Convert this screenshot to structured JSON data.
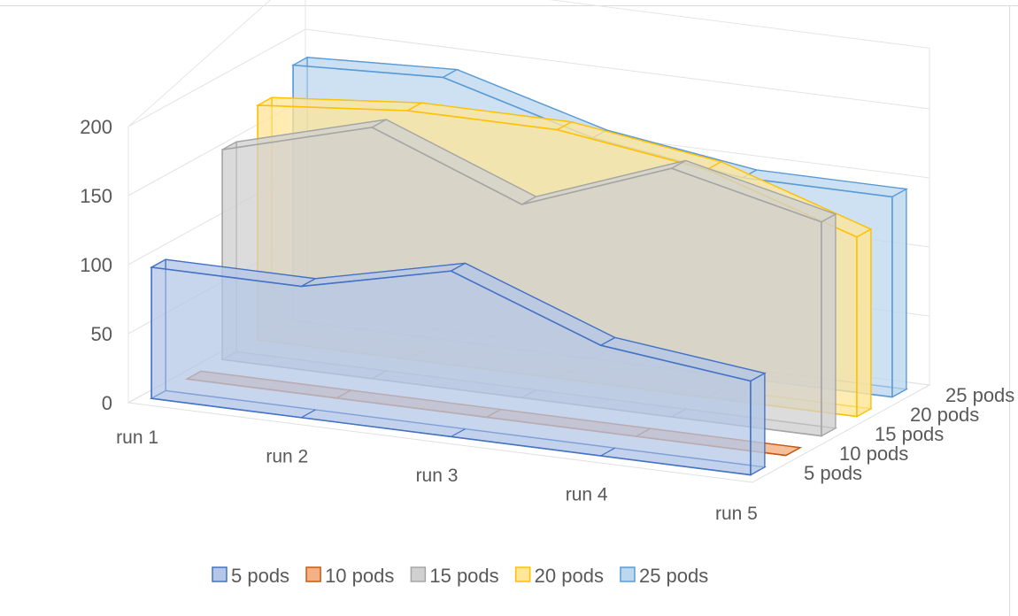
{
  "chart_data": {
    "type": "area",
    "style": "3d-area",
    "categories": [
      "run 1",
      "run 2",
      "run 3",
      "run 4",
      "run 5"
    ],
    "series": [
      {
        "name": "5 pods",
        "values": [
          95,
          95,
          120,
          80,
          68
        ]
      },
      {
        "name": "10 pods",
        "values": [
          0,
          0,
          0,
          0,
          0
        ]
      },
      {
        "name": "15 pods",
        "values": [
          152,
          182,
          140,
          180,
          155
        ]
      },
      {
        "name": "20 pods",
        "values": [
          170,
          180,
          180,
          165,
          130
        ]
      },
      {
        "name": "25 pods",
        "values": [
          185,
          190,
          160,
          145,
          145
        ]
      }
    ],
    "y_ticks": [
      "0",
      "50",
      "100",
      "150",
      "200"
    ],
    "ylim": [
      0,
      200
    ],
    "legend": "bottom",
    "grid": true,
    "colors": {
      "5 pods": {
        "fill": "#b4c7e7",
        "stroke": "#4472c4"
      },
      "10 pods": {
        "fill": "#f4b183",
        "stroke": "#c55a11"
      },
      "15 pods": {
        "fill": "#d0d0d0",
        "stroke": "#a5a5a5"
      },
      "20 pods": {
        "fill": "#ffe699",
        "stroke": "#ffc000"
      },
      "25 pods": {
        "fill": "#bdd7ee",
        "stroke": "#5b9bd5"
      }
    }
  }
}
